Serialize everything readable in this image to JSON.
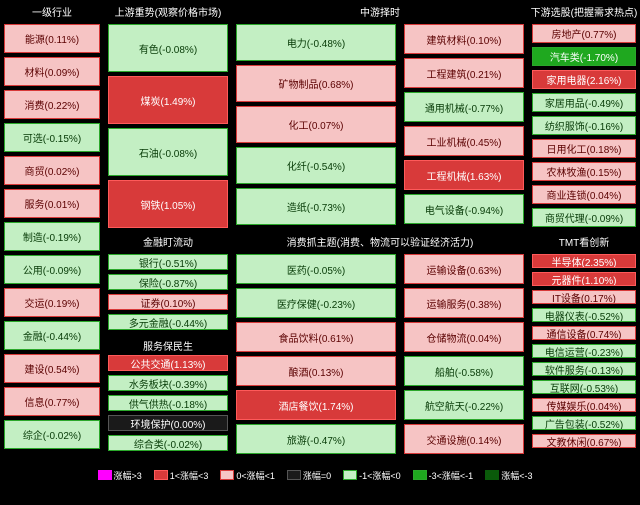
{
  "palette": {
    "up3": {
      "bg": "#ff00ff",
      "fg": "#ffffff",
      "border": "#ff00ff"
    },
    "up2": {
      "bg": "#d83a3a",
      "fg": "#ffffff",
      "border": "#ff5a5a"
    },
    "up1": {
      "bg": "#f6c4c4",
      "fg": "#5a0000",
      "border": "#d83a3a"
    },
    "flat": {
      "bg": "#1a1a1a",
      "fg": "#ffffff",
      "border": "#555555"
    },
    "dn1": {
      "bg": "#c3efc3",
      "fg": "#063a06",
      "border": "#2aa82a"
    },
    "dn2": {
      "bg": "#1fa81f",
      "fg": "#ffffff",
      "border": "#2aa82a"
    },
    "dn3": {
      "bg": "#0a5a0a",
      "fg": "#ffffff",
      "border": "#0a5a0a"
    }
  },
  "thresholds": {
    "up3": 3,
    "up2": 1,
    "up1": 0,
    "dn1": 0,
    "dn2": -1,
    "dn3": -3
  },
  "legend": [
    {
      "label": "涨幅>3",
      "key": "up3"
    },
    {
      "label": "1<涨幅<3",
      "key": "up2"
    },
    {
      "label": "0<涨幅<1",
      "key": "up1"
    },
    {
      "label": "涨幅=0",
      "key": "flat"
    },
    {
      "label": "-1<涨幅<0",
      "key": "dn1"
    },
    {
      "label": "-3<涨幅<-1",
      "key": "dn2"
    },
    {
      "label": "涨幅<-3",
      "key": "dn3"
    }
  ],
  "columns_top": [
    {
      "slot": "c1",
      "continues_below": true,
      "title": "一级行业",
      "items": [
        {
          "name": "能源",
          "pct": 0.11
        },
        {
          "name": "材料",
          "pct": 0.09
        },
        {
          "name": "消费",
          "pct": 0.22
        },
        {
          "name": "可选",
          "pct": -0.15
        },
        {
          "name": "商贸",
          "pct": 0.02
        },
        {
          "name": "服务",
          "pct": 0.01
        },
        {
          "name": "制造",
          "pct": -0.19
        },
        {
          "name": "公用",
          "pct": -0.09
        },
        {
          "name": "交运",
          "pct": 0.19
        },
        {
          "name": "金融",
          "pct": -0.44
        },
        {
          "name": "建设",
          "pct": 0.54
        },
        {
          "name": "信息",
          "pct": 0.77
        },
        {
          "name": "综企",
          "pct": -0.02
        }
      ]
    },
    {
      "slot": "c2",
      "title": "上游重势(观察价格市场)",
      "items": [
        {
          "name": "有色",
          "pct": -0.08
        },
        {
          "name": "煤炭",
          "pct": 1.49
        },
        {
          "name": "石油",
          "pct": -0.08
        },
        {
          "name": "钢铁",
          "pct": 1.05
        }
      ]
    },
    {
      "slot": "c3",
      "title": "中游择时",
      "items": [
        {
          "name": "电力",
          "pct": -0.48
        },
        {
          "name": "矿物制品",
          "pct": 0.68
        },
        {
          "name": "化工",
          "pct": 0.07
        },
        {
          "name": "化纤",
          "pct": -0.54
        },
        {
          "name": "造纸",
          "pct": -0.73
        }
      ]
    },
    {
      "slot": "c4",
      "title": "",
      "items": [
        {
          "name": "建筑材料",
          "pct": 0.1
        },
        {
          "name": "工程建筑",
          "pct": 0.21
        },
        {
          "name": "通用机械",
          "pct": -0.77
        },
        {
          "name": "工业机械",
          "pct": 0.45
        },
        {
          "name": "工程机械",
          "pct": 1.63
        },
        {
          "name": "电气设备",
          "pct": -0.94
        }
      ]
    },
    {
      "slot": "c5",
      "title": "下游选股(把握需求热点)",
      "items": [
        {
          "name": "房地产",
          "pct": 0.77
        },
        {
          "name": "汽车类",
          "pct": -1.7
        },
        {
          "name": "家用电器",
          "pct": 2.16
        },
        {
          "name": "家居用品",
          "pct": -0.49
        },
        {
          "name": "纺织服饰",
          "pct": -0.16
        },
        {
          "name": "日用化工",
          "pct": 0.18
        },
        {
          "name": "农林牧渔",
          "pct": 0.15
        },
        {
          "name": "商业连锁",
          "pct": 0.04
        },
        {
          "name": "商贸代理",
          "pct": -0.09
        }
      ]
    }
  ],
  "columns_bottom": [
    {
      "slot": "c2a",
      "title": "金融盯流动",
      "items": [
        {
          "name": "银行",
          "pct": -0.51
        },
        {
          "name": "保险",
          "pct": -0.87
        },
        {
          "name": "证券",
          "pct": 0.1
        },
        {
          "name": "多元金融",
          "pct": -0.44
        }
      ]
    },
    {
      "slot": "c2b",
      "title": "服务保民生",
      "items": [
        {
          "name": "公共交通",
          "pct": 1.13
        },
        {
          "name": "水务板块",
          "pct": -0.39
        },
        {
          "name": "供气供热",
          "pct": -0.18
        },
        {
          "name": "环境保护",
          "pct": -0.0
        },
        {
          "name": "综合类",
          "pct": -0.02
        }
      ]
    },
    {
      "slot": "c3",
      "title": "消费抓主题(消费、物流可以验证经济活力)",
      "items": [
        {
          "name": "医药",
          "pct": -0.05
        },
        {
          "name": "医疗保健",
          "pct": -0.23
        },
        {
          "name": "食品饮料",
          "pct": 0.61
        },
        {
          "name": "酿酒",
          "pct": 0.13
        },
        {
          "name": "酒店餐饮",
          "pct": 1.74
        },
        {
          "name": "旅游",
          "pct": -0.47
        }
      ]
    },
    {
      "slot": "c4",
      "title": "",
      "items": [
        {
          "name": "运输设备",
          "pct": 0.63
        },
        {
          "name": "运输服务",
          "pct": 0.38
        },
        {
          "name": "仓储物流",
          "pct": 0.04
        },
        {
          "name": "船舶",
          "pct": -0.58
        },
        {
          "name": "航空航天",
          "pct": -0.22
        },
        {
          "name": "交通设施",
          "pct": 0.14
        }
      ]
    },
    {
      "slot": "c5",
      "title": "TMT看创新",
      "items": [
        {
          "name": "半导体",
          "pct": 2.35
        },
        {
          "name": "元器件",
          "pct": 1.1
        },
        {
          "name": "IT设备",
          "pct": 0.17
        },
        {
          "name": "电器仪表",
          "pct": -0.52
        },
        {
          "name": "通信设备",
          "pct": 0.74
        },
        {
          "name": "电信运营",
          "pct": -0.23
        },
        {
          "name": "软件服务",
          "pct": -0.13
        },
        {
          "name": "互联网",
          "pct": -0.53
        },
        {
          "name": "传媒娱乐",
          "pct": 0.04
        },
        {
          "name": "广告包装",
          "pct": -0.52
        },
        {
          "name": "文教休闲",
          "pct": 0.67
        }
      ]
    }
  ]
}
